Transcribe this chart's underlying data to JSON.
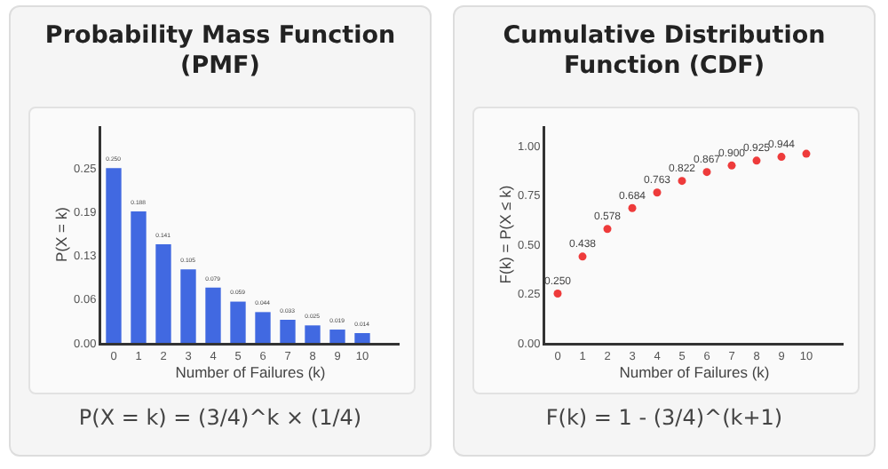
{
  "chart_data": [
    {
      "type": "bar",
      "title": "Probability Mass Function (PMF)",
      "xlabel": "Number of Failures (k)",
      "ylabel": "P(X = k)",
      "x": [
        0,
        1,
        2,
        3,
        4,
        5,
        6,
        7,
        8,
        9,
        10
      ],
      "values": [
        0.25,
        0.188,
        0.141,
        0.105,
        0.079,
        0.059,
        0.044,
        0.033,
        0.025,
        0.019,
        0.014
      ],
      "value_labels": [
        "0.250",
        "0.188",
        "0.141",
        "0.105",
        "0.079",
        "0.059",
        "0.044",
        "0.033",
        "0.025",
        "0.019",
        "0.014"
      ],
      "color": "#4169e1",
      "xlim": [
        -0.5,
        11.5
      ],
      "xticks": [
        0,
        1,
        2,
        3,
        4,
        5,
        6,
        7,
        8,
        9,
        10
      ],
      "ylim": [
        0,
        0.31
      ],
      "yticks": [
        {
          "value": 0,
          "label": "0.00"
        },
        {
          "value": 0.0625,
          "label": "0.06"
        },
        {
          "value": 0.125,
          "label": "0.13"
        },
        {
          "value": 0.1875,
          "label": "0.19"
        },
        {
          "value": 0.25,
          "label": "0.25"
        }
      ],
      "grid": false,
      "legend": false,
      "annotations": [
        "P(X = k) = (3/4)^k × (1/4)"
      ]
    },
    {
      "type": "scatter",
      "title": "Cumulative Distribution Function (CDF)",
      "xlabel": "Number of Failures (k)",
      "ylabel": "F(k) = P(X ≤ k)",
      "x": [
        0,
        1,
        2,
        3,
        4,
        5,
        6,
        7,
        8,
        9,
        10
      ],
      "values": [
        0.25,
        0.438,
        0.578,
        0.684,
        0.763,
        0.822,
        0.867,
        0.9,
        0.925,
        0.944,
        0.96
      ],
      "value_labels": [
        "0.250",
        "0.438",
        "0.578",
        "0.684",
        "0.763",
        "0.822",
        "0.867",
        "0.900",
        "0.925",
        "0.944",
        null
      ],
      "color": "#ee3b3b",
      "marker": "circle",
      "xlim": [
        -0.5,
        11.5
      ],
      "xticks": [
        0,
        1,
        2,
        3,
        4,
        5,
        6,
        7,
        8,
        9,
        10
      ],
      "ylim": [
        0,
        1.1
      ],
      "yticks": [
        {
          "value": 0,
          "label": "0.00"
        },
        {
          "value": 0.25,
          "label": "0.25"
        },
        {
          "value": 0.5,
          "label": "0.50"
        },
        {
          "value": 0.75,
          "label": "0.75"
        },
        {
          "value": 1,
          "label": "1.00"
        }
      ],
      "grid": false,
      "legend": false,
      "annotations": [
        "F(k) = 1 - (3/4)^(k+1)"
      ]
    }
  ]
}
